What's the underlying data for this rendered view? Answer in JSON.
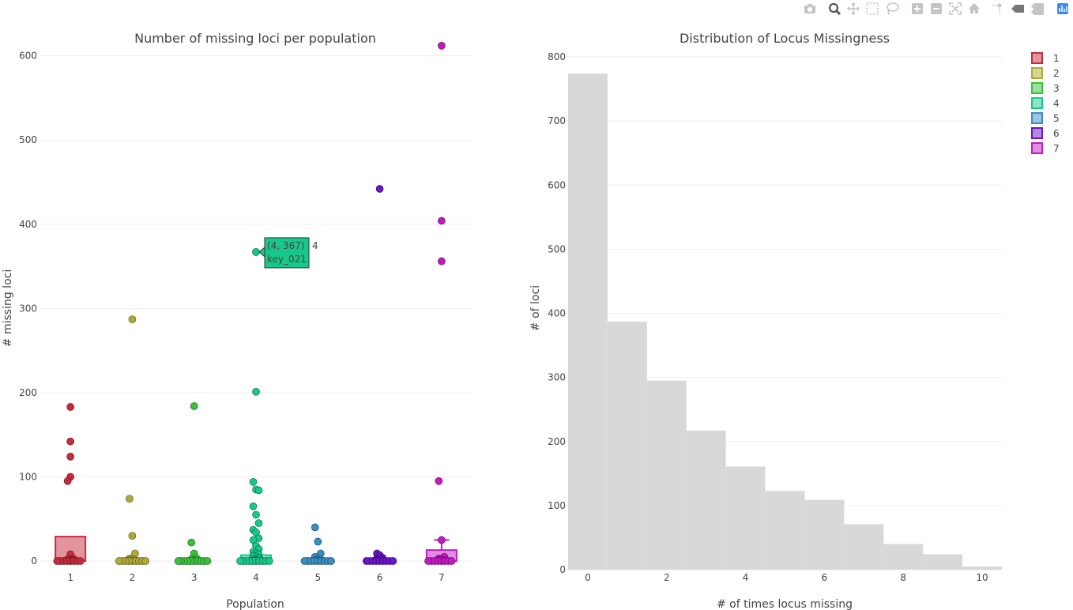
{
  "modebar": {
    "buttons": [
      {
        "icon": "camera-icon",
        "name": "download-plot-button"
      },
      {
        "icon": "zoom-icon",
        "name": "zoom-button",
        "active": true
      },
      {
        "icon": "pan-icon",
        "name": "pan-button"
      },
      {
        "icon": "box-select-icon",
        "name": "box-select-button"
      },
      {
        "icon": "lasso-select-icon",
        "name": "lasso-select-button"
      },
      {
        "icon": "zoom-in-icon",
        "name": "zoom-in-button"
      },
      {
        "icon": "zoom-out-icon",
        "name": "zoom-out-button"
      },
      {
        "icon": "autoscale-icon",
        "name": "autoscale-button"
      },
      {
        "icon": "home-icon",
        "name": "reset-axes-button"
      },
      {
        "icon": "spike-lines-icon",
        "name": "spike-lines-button"
      },
      {
        "icon": "hover-closest-icon",
        "name": "hover-closest-button"
      },
      {
        "icon": "hover-compare-icon",
        "name": "hover-compare-button"
      },
      {
        "icon": "plotly-logo-icon",
        "name": "plotly-logo-link"
      }
    ]
  },
  "legend": {
    "placement": "top-right",
    "items": [
      {
        "label": "1",
        "color": "#c62b3d"
      },
      {
        "label": "2",
        "color": "#b0a935"
      },
      {
        "label": "3",
        "color": "#3cc03a"
      },
      {
        "label": "4",
        "color": "#17c989"
      },
      {
        "label": "5",
        "color": "#3a8ec2"
      },
      {
        "label": "6",
        "color": "#6a14c8"
      },
      {
        "label": "7",
        "color": "#c219c2"
      }
    ]
  },
  "chart_data": [
    {
      "type": "box",
      "title": "Number of missing loci per population",
      "xlabel": "Population",
      "ylabel": "# missing loci",
      "categories": [
        "1",
        "2",
        "3",
        "4",
        "5",
        "6",
        "7"
      ],
      "ylim": [
        -30,
        640
      ],
      "yticks": [
        0,
        100,
        200,
        300,
        400,
        500,
        600
      ],
      "grid": true,
      "boxes": [
        {
          "name": "1",
          "q1": 0,
          "median": 0,
          "q3": 29,
          "whisker_high": 29
        },
        {
          "name": "2",
          "q1": 0,
          "median": 0,
          "q3": 2,
          "whisker_high": 2
        },
        {
          "name": "3",
          "q1": 0,
          "median": 0,
          "q3": 2,
          "whisker_high": 2
        },
        {
          "name": "4",
          "q1": 0,
          "median": 0,
          "q3": 7,
          "whisker_high": 7
        },
        {
          "name": "5",
          "q1": 0,
          "median": 0,
          "q3": 2,
          "whisker_high": 2
        },
        {
          "name": "6",
          "q1": 0,
          "median": 0,
          "q3": 2,
          "whisker_high": 2
        },
        {
          "name": "7",
          "q1": 0,
          "median": 0,
          "q3": 13,
          "whisker_high": 25
        }
      ],
      "points": [
        {
          "name": "1",
          "values": [
            183,
            142,
            124,
            100,
            95,
            8,
            3,
            2,
            1,
            1,
            0,
            0,
            0,
            0,
            0,
            0,
            0,
            0
          ]
        },
        {
          "name": "2",
          "values": [
            287,
            74,
            30,
            9,
            3,
            2,
            1,
            1,
            0,
            0,
            0,
            0,
            0,
            0,
            0,
            0,
            0
          ]
        },
        {
          "name": "3",
          "values": [
            184,
            22,
            9,
            3,
            2,
            1,
            0,
            0,
            0,
            0,
            0,
            0,
            0,
            0,
            0,
            0
          ]
        },
        {
          "name": "4",
          "values": [
            367,
            201,
            94,
            85,
            84,
            65,
            55,
            45,
            37,
            34,
            27,
            25,
            18,
            14,
            11,
            9,
            8,
            6,
            5,
            4,
            3,
            2,
            2,
            1,
            1,
            0,
            0,
            0,
            0,
            0,
            0,
            0,
            0,
            0,
            0
          ]
        },
        {
          "name": "5",
          "values": [
            40,
            23,
            9,
            5,
            3,
            2,
            1,
            1,
            0,
            0,
            0,
            0,
            0,
            0,
            0,
            0,
            0
          ]
        },
        {
          "name": "6",
          "values": [
            442,
            9,
            7,
            4,
            3,
            2,
            1,
            1,
            0,
            0,
            0,
            0,
            0,
            0,
            0,
            0,
            0
          ]
        },
        {
          "name": "7",
          "values": [
            612,
            404,
            356,
            95,
            25,
            5,
            3,
            2,
            1,
            1,
            0,
            0,
            0,
            0,
            0,
            0,
            0,
            0
          ]
        }
      ],
      "hover": {
        "population": "4",
        "point_label": "(4, 367)",
        "key": "key_021",
        "trace_label": "4",
        "color": "#17c989"
      }
    },
    {
      "type": "histogram",
      "title": "Distribution of Locus Missingness",
      "xlabel": "# of times locus missing",
      "ylabel": "# of loci",
      "x": [
        0,
        1,
        2,
        3,
        4,
        5,
        6,
        7,
        8,
        9,
        10
      ],
      "values": [
        774,
        387,
        295,
        217,
        161,
        123,
        109,
        71,
        40,
        24,
        5
      ],
      "xlim": [
        -0.5,
        10.5
      ],
      "ylim": [
        0,
        800
      ],
      "xticks": [
        0,
        2,
        4,
        6,
        8,
        10
      ],
      "yticks": [
        0,
        100,
        200,
        300,
        400,
        500,
        600,
        700,
        800
      ],
      "bar_color": "#d8d8d8",
      "grid": true
    }
  ]
}
